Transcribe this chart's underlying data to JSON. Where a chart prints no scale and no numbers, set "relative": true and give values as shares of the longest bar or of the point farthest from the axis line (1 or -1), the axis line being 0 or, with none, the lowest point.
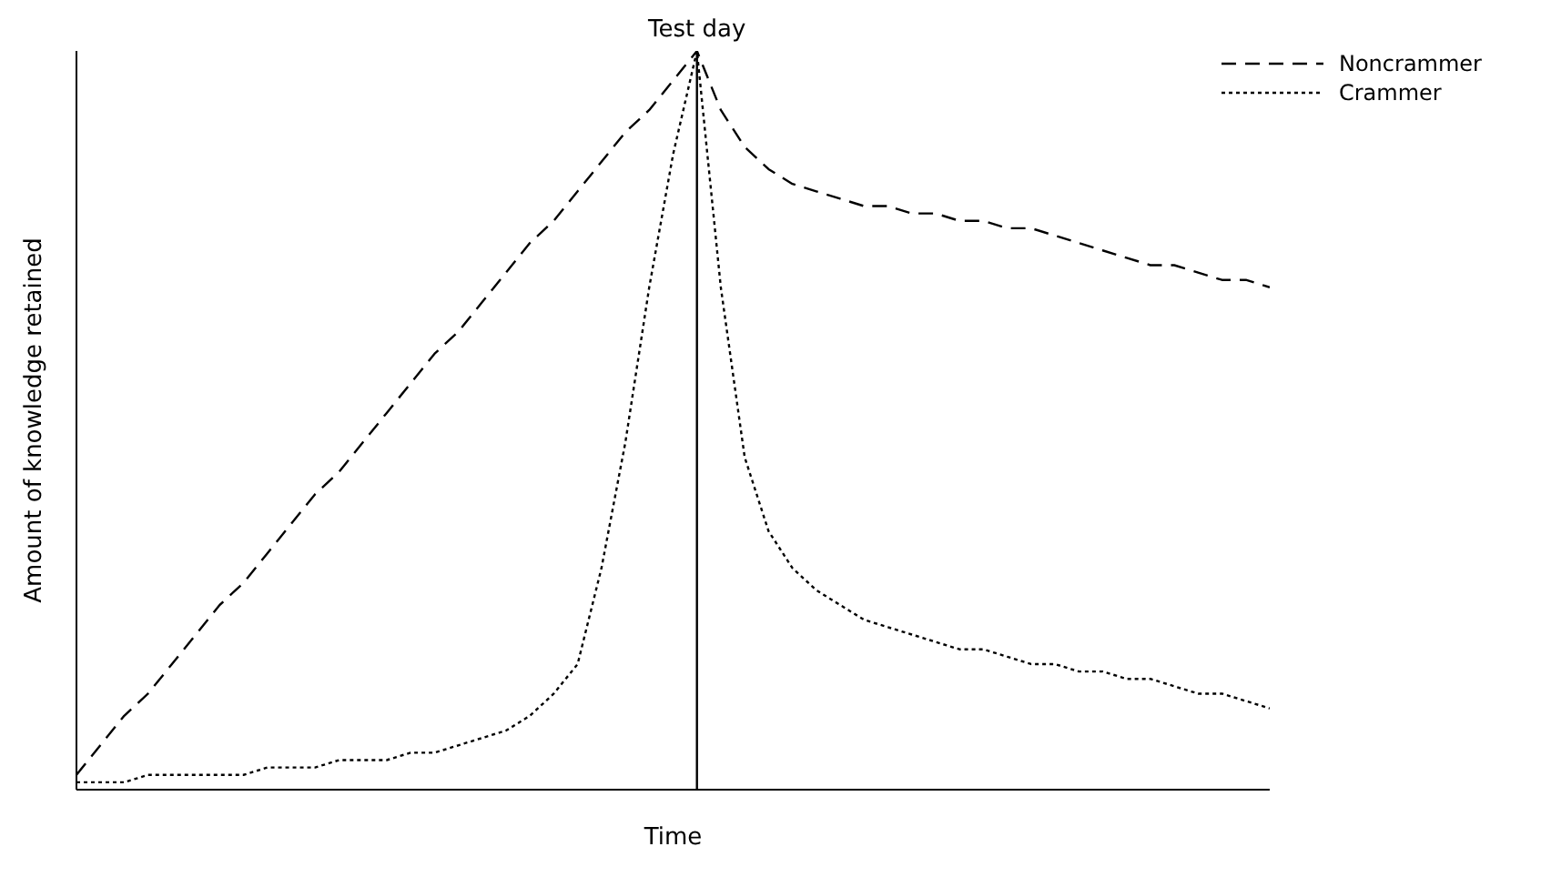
{
  "chart_data": {
    "type": "line",
    "xlabel": "Time",
    "ylabel": "Amount of knowledge retained",
    "relative": true,
    "legend": "top right",
    "marker": "none",
    "categories": [
      null,
      null,
      null,
      null,
      null,
      null,
      null,
      null,
      null,
      null,
      null,
      null,
      null,
      null,
      null,
      null,
      null,
      null,
      null,
      null,
      null,
      null,
      null,
      null,
      null,
      null,
      null,
      null,
      null,
      null,
      null,
      null,
      null,
      null,
      null,
      null,
      null,
      null,
      null,
      null,
      null,
      null,
      null,
      null,
      null,
      null,
      null,
      null,
      null,
      null,
      null
    ],
    "series": [
      {
        "name": "Noncrammer",
        "color": "#000000",
        "line_style": "dashed",
        "values": [
          0.02,
          0.06,
          0.1,
          0.13,
          0.17,
          0.21,
          0.25,
          0.28,
          0.32,
          0.36,
          0.4,
          0.43,
          0.47,
          0.51,
          0.55,
          0.59,
          0.62,
          0.66,
          0.7,
          0.74,
          0.77,
          0.81,
          0.85,
          0.89,
          0.92,
          0.96,
          1,
          0.92,
          0.87,
          0.84,
          0.82,
          0.81,
          0.8,
          0.79,
          0.79,
          0.78,
          0.78,
          0.77,
          0.77,
          0.76,
          0.76,
          0.75,
          0.74,
          0.73,
          0.72,
          0.71,
          0.71,
          0.7,
          0.69,
          0.69,
          0.68
        ]
      },
      {
        "name": "Crammer",
        "color": "#000000",
        "line_style": "dotted",
        "values": [
          0.01,
          0.01,
          0.01,
          0.02,
          0.02,
          0.02,
          0.02,
          0.02,
          0.03,
          0.03,
          0.03,
          0.04,
          0.04,
          0.04,
          0.05,
          0.05,
          0.06,
          0.07,
          0.08,
          0.1,
          0.13,
          0.17,
          0.3,
          0.47,
          0.68,
          0.86,
          1,
          0.68,
          0.45,
          0.35,
          0.3,
          0.27,
          0.25,
          0.23,
          0.22,
          0.21,
          0.2,
          0.19,
          0.19,
          0.18,
          0.17,
          0.17,
          0.16,
          0.16,
          0.15,
          0.15,
          0.14,
          0.13,
          0.13,
          0.12,
          0.11
        ]
      }
    ],
    "annotations": [
      {
        "text": "Test day",
        "y": 1
      }
    ]
  }
}
